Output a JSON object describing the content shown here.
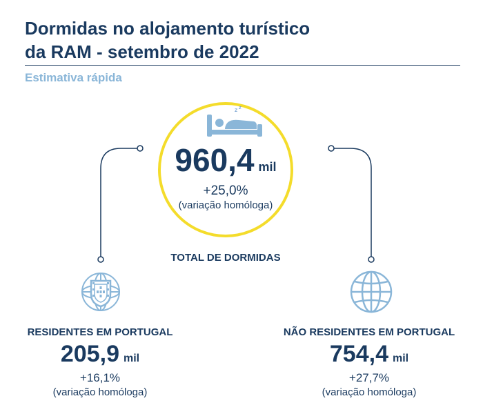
{
  "header": {
    "title_line1": "Dormidas no alojamento turístico",
    "title_line2": "da RAM - setembro de 2022",
    "subtitle": "Estimativa rápida"
  },
  "total": {
    "value": "960,4",
    "unit": "mil",
    "variation": "+25,0%",
    "note": "(variação homóloga)",
    "label": "TOTAL DE DORMIDAS",
    "icon": "bed-sleep-icon"
  },
  "residents": {
    "label": "RESIDENTES EM PORTUGAL",
    "value": "205,9",
    "unit": "mil",
    "variation": "+16,1%",
    "note": "(variação homóloga)",
    "icon": "portugal-shield-icon"
  },
  "non_residents": {
    "label": "NÃO RESIDENTES EM PORTUGAL",
    "value": "754,4",
    "unit": "mil",
    "variation": "+27,7%",
    "note": "(variação homóloga)",
    "icon": "globe-icon"
  },
  "colors": {
    "primary": "#1a3a5f",
    "accent_yellow": "#f4dc2b",
    "light_blue": "#8ab6d8"
  }
}
